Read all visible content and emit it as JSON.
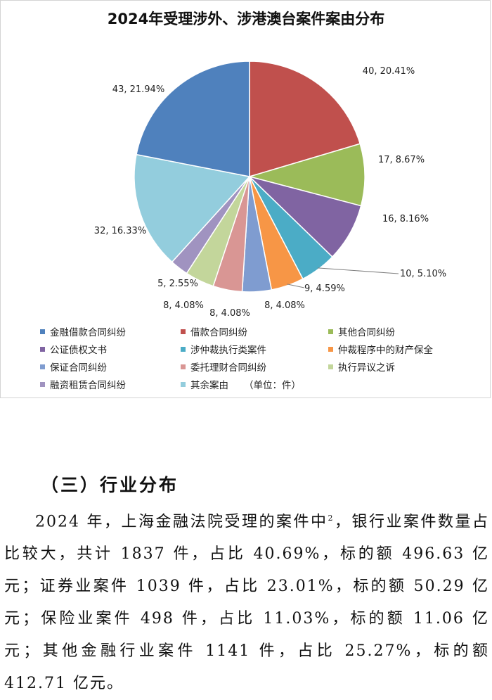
{
  "chart_data": {
    "type": "pie",
    "title": "2024年受理涉外、涉港澳台案件案由分布",
    "unit_note": "（单位：件）",
    "slices": [
      {
        "name": "借款合同纠纷",
        "value": 40,
        "percent": "20.41%",
        "label": "40, 20.41%",
        "color": "#c0504d"
      },
      {
        "name": "其他合同纠纷",
        "value": 17,
        "percent": "8.67%",
        "label": "17, 8.67%",
        "color": "#9bbb59"
      },
      {
        "name": "公证债权文书",
        "value": 16,
        "percent": "8.16%",
        "label": "16, 8.16%",
        "color": "#8064a2"
      },
      {
        "name": "涉仲裁执行类案件",
        "value": 10,
        "percent": "5.10%",
        "label": "10, 5.10%",
        "color": "#4bacc6"
      },
      {
        "name": "仲裁程序中的财产保全",
        "value": 9,
        "percent": "4.59%",
        "label": "9, 4.59%",
        "color": "#f79646"
      },
      {
        "name": "保证合同纠纷",
        "value": 8,
        "percent": "4.08%",
        "label": "8, 4.08%",
        "color": "#7f9cd0"
      },
      {
        "name": "委托理财合同纠纷",
        "value": 8,
        "percent": "4.08%",
        "label": "8, 4.08%",
        "color": "#d99694"
      },
      {
        "name": "执行异议之诉",
        "value": 8,
        "percent": "4.08%",
        "label": "8, 4.08%",
        "color": "#c3d69b"
      },
      {
        "name": "融资租赁合同纠纷",
        "value": 5,
        "percent": "2.55%",
        "label": "5, 2.55%",
        "color": "#a093c0"
      },
      {
        "name": "其余案由",
        "value": 32,
        "percent": "16.33%",
        "label": "32, 16.33%",
        "color": "#93cddd"
      },
      {
        "name": "金融借款合同纠纷",
        "value": 43,
        "percent": "21.94%",
        "label": "43, 21.94%",
        "color": "#4f81bd"
      }
    ],
    "legend": [
      {
        "name": "金融借款合同纠纷",
        "color": "#4f81bd"
      },
      {
        "name": "借款合同纠纷",
        "color": "#c0504d"
      },
      {
        "name": "其他合同纠纷",
        "color": "#9bbb59"
      },
      {
        "name": "公证债权文书",
        "color": "#8064a2"
      },
      {
        "name": "涉仲裁执行类案件",
        "color": "#4bacc6"
      },
      {
        "name": "仲裁程序中的财产保全",
        "color": "#f79646"
      },
      {
        "name": "保证合同纠纷",
        "color": "#7f9cd0"
      },
      {
        "name": "委托理财合同纠纷",
        "color": "#d99694"
      },
      {
        "name": "执行异议之诉",
        "color": "#c3d69b"
      },
      {
        "name": "融资租赁合同纠纷",
        "color": "#a093c0"
      },
      {
        "name": "其余案由",
        "color": "#93cddd"
      }
    ],
    "legend_placement": "bottom"
  },
  "text": {
    "heading": "（三）行业分布",
    "paragraph_part1": "2024 年，上海金融法院受理的案件中",
    "footnote_mark": "2",
    "paragraph_part2": "，银行业案件数量占比较大，共计 1837 件，占比 40.69%，标的额 496.63 亿元；证券业案件 1039 件，占比 23.01%，标的额 50.29 亿元；保险业案件 498 件，占比 11.03%，标的额 11.06 亿元；其他金融行业案件 1141 件，占比 25.27%，标的额 412.71 亿元。"
  }
}
